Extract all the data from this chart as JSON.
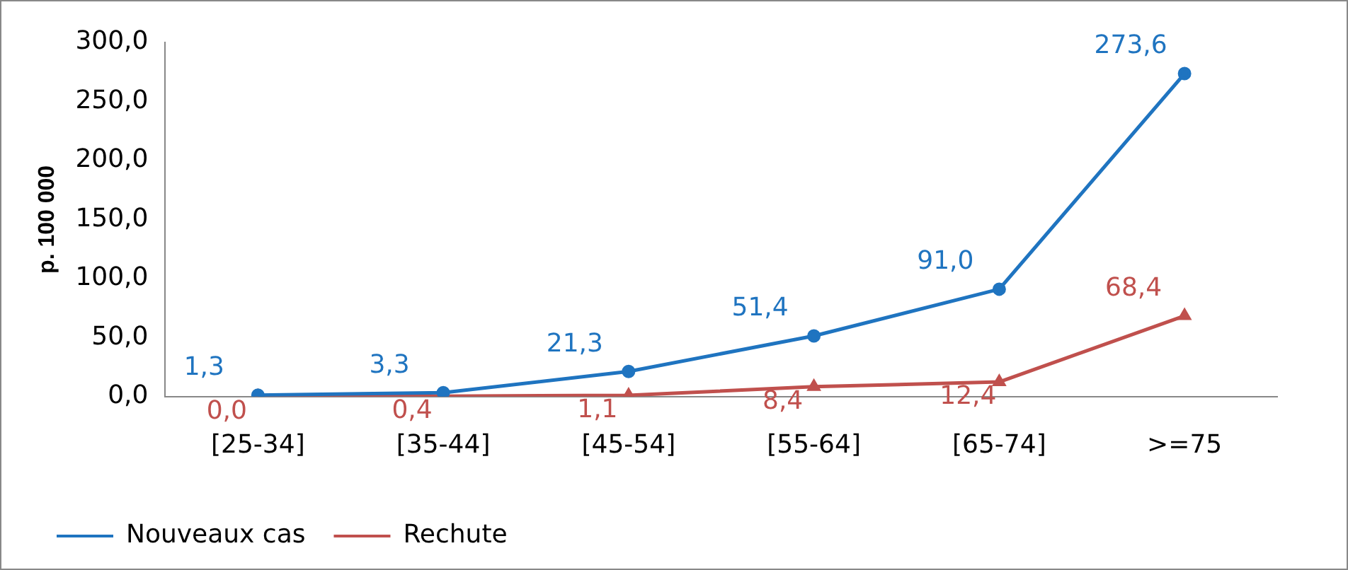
{
  "chart_data": {
    "type": "line",
    "ylabel": "p. 100 000",
    "categories": [
      "[25-34]",
      "[35-44]",
      "[45-54]",
      "[55-64]",
      "[65-74]",
      ">=75"
    ],
    "series": [
      {
        "name": "Nouveaux cas",
        "color": "#1f74c0",
        "marker": "circle",
        "values": [
          1.3,
          3.3,
          21.3,
          51.4,
          91.0,
          273.6
        ],
        "value_labels": [
          "1,3",
          "3,3",
          "21,3",
          "51,4",
          "91,0",
          "273,6"
        ]
      },
      {
        "name": "Rechute",
        "color": "#c0504d",
        "marker": "triangle",
        "values": [
          0.0,
          0.4,
          1.1,
          8.4,
          12.4,
          68.4
        ],
        "value_labels": [
          "0,0",
          "0,4",
          "1,1",
          "8,4",
          "12,4",
          "68,4"
        ]
      }
    ],
    "ylim": [
      0,
      300
    ],
    "yticks": [
      {
        "value": 0,
        "label": "0,0"
      },
      {
        "value": 50,
        "label": "50,0"
      },
      {
        "value": 100,
        "label": "100,0"
      },
      {
        "value": 150,
        "label": "150,0"
      },
      {
        "value": 200,
        "label": "200,0"
      },
      {
        "value": 250,
        "label": "250,0"
      },
      {
        "value": 300,
        "label": "300,0"
      }
    ],
    "grid": false,
    "legend": "bottom left",
    "line_style": "solid"
  }
}
